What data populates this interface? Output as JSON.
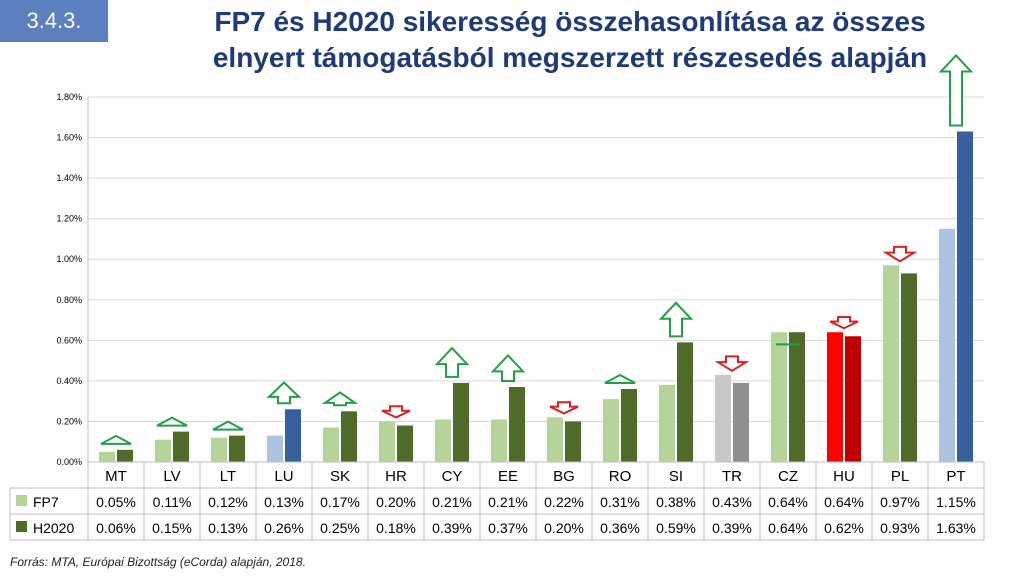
{
  "slide": {
    "number": "3.4.3.",
    "title_line1": "FP7 és H2020 sikeresség összehasonlítása az összes",
    "title_line2": "elnyert támogatásból megszerzett részesedés alapján",
    "source": "Forrás: MTA, Európai Bizottság (eCorda) alapján, 2018."
  },
  "colors": {
    "fp7_default": "#b5d49a",
    "h2020_default": "#4f6b2a",
    "lu_pt_fp7": "#adc3e4",
    "lu_pt_h2020": "#365f9c",
    "tr_fp7": "#c8c8c8",
    "tr_h2020": "#8f8f8f",
    "hu_fp7": "#ff0000",
    "hu_h2020": "#c00000",
    "arrow_up": "#22a045",
    "arrow_down": "#e02020",
    "title": "#1f3a78",
    "badge": "#5b7fbf"
  },
  "chart_data": {
    "type": "bar",
    "categories": [
      "MT",
      "LV",
      "LT",
      "LU",
      "SK",
      "HR",
      "CY",
      "EE",
      "BG",
      "RO",
      "SI",
      "TR",
      "CZ",
      "HU",
      "PL",
      "PT"
    ],
    "series": [
      {
        "name": "FP7",
        "values": [
          0.05,
          0.11,
          0.12,
          0.13,
          0.17,
          0.2,
          0.21,
          0.21,
          0.22,
          0.31,
          0.38,
          0.43,
          0.64,
          0.64,
          0.97,
          1.15
        ]
      },
      {
        "name": "H2020",
        "values": [
          0.06,
          0.15,
          0.13,
          0.26,
          0.25,
          0.18,
          0.39,
          0.37,
          0.2,
          0.36,
          0.59,
          0.39,
          0.64,
          0.62,
          0.93,
          1.63
        ]
      }
    ],
    "table_values": {
      "FP7": [
        "0.05%",
        "0.11%",
        "0.12%",
        "0.13%",
        "0.17%",
        "0.20%",
        "0.21%",
        "0.21%",
        "0.22%",
        "0.31%",
        "0.38%",
        "0.43%",
        "0.64%",
        "0.64%",
        "0.97%",
        "1.15%"
      ],
      "H2020": [
        "0.06%",
        "0.15%",
        "0.13%",
        "0.26%",
        "0.25%",
        "0.18%",
        "0.39%",
        "0.37%",
        "0.20%",
        "0.36%",
        "0.59%",
        "0.39%",
        "0.64%",
        "0.62%",
        "0.93%",
        "1.63%"
      ]
    },
    "y_ticks": [
      "0.00%",
      "0.20%",
      "0.40%",
      "0.60%",
      "0.80%",
      "1.00%",
      "1.20%",
      "1.40%",
      "1.60%",
      "1.80%"
    ],
    "ylim": [
      0,
      1.8
    ],
    "unit": "%",
    "grid": true,
    "trend_markers": [
      "up",
      "up",
      "up",
      "up",
      "up",
      "down",
      "up",
      "up",
      "down",
      "up",
      "up",
      "down",
      "flat",
      "down",
      "down",
      "up"
    ]
  }
}
